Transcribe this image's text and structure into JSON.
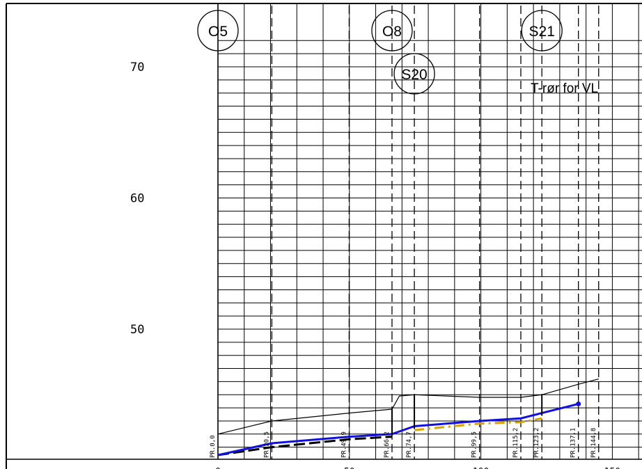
{
  "y_axis": {
    "labels": [
      {
        "text": "70",
        "value": 70
      },
      {
        "text": "60",
        "value": 60
      },
      {
        "text": "50",
        "value": 50
      }
    ]
  },
  "profile": {
    "nodes": [
      {
        "id": "O5",
        "chainage": 0.0
      },
      {
        "id": "O8",
        "chainage": 66.2
      },
      {
        "id": "S20",
        "chainage": 74.7
      },
      {
        "id": "S21",
        "chainage": 123.2
      }
    ],
    "note": "T-rør for VL",
    "stations": [
      {
        "label": "PR.0,0",
        "chainage": 0.0
      },
      {
        "label": "PR.20,5",
        "chainage": 20.5
      },
      {
        "label": "PR.49,9",
        "chainage": 49.9
      },
      {
        "label": "PR.66,2",
        "chainage": 66.2
      },
      {
        "label": "PR.74,7",
        "chainage": 74.7
      },
      {
        "label": "PR.99,5",
        "chainage": 99.5
      },
      {
        "label": "PR.115,2",
        "chainage": 115.2
      },
      {
        "label": "PR.123,2",
        "chainage": 123.2
      },
      {
        "label": "PR.137,1",
        "chainage": 137.1
      },
      {
        "label": "PR.144,8",
        "chainage": 144.8
      }
    ],
    "x_tick_labels": [
      "0",
      "50",
      "100",
      "150"
    ],
    "terrain": [
      [
        0,
        42.0
      ],
      [
        20.5,
        43.0
      ],
      [
        49.9,
        43.6
      ],
      [
        66.2,
        43.9
      ],
      [
        69,
        44.9
      ],
      [
        74.7,
        45.0
      ],
      [
        99.5,
        44.8
      ],
      [
        115.2,
        44.8
      ],
      [
        123.2,
        45.0
      ],
      [
        137.1,
        45.8
      ],
      [
        144.8,
        46.2
      ]
    ],
    "pipe_blue": [
      [
        0,
        40.4
      ],
      [
        20.5,
        41.3
      ],
      [
        49.9,
        41.8
      ],
      [
        66.2,
        42.0
      ],
      [
        74.7,
        42.6
      ],
      [
        99.5,
        43.0
      ],
      [
        115.2,
        43.2
      ],
      [
        123.2,
        43.6
      ],
      [
        137.1,
        44.3
      ]
    ],
    "pipe_black_dashed": [
      [
        0,
        40.4
      ],
      [
        20.5,
        41.0
      ],
      [
        49.9,
        41.6
      ],
      [
        66.2,
        41.8
      ]
    ],
    "pipe_orange_dashed": [
      [
        74.7,
        42.3
      ],
      [
        99.5,
        42.8
      ],
      [
        115.2,
        42.9
      ],
      [
        123.2,
        43.2
      ]
    ],
    "colors": {
      "blue_pipe": "#1010e0",
      "orange_pipe": "#e0a000",
      "grid": "#000000"
    }
  }
}
